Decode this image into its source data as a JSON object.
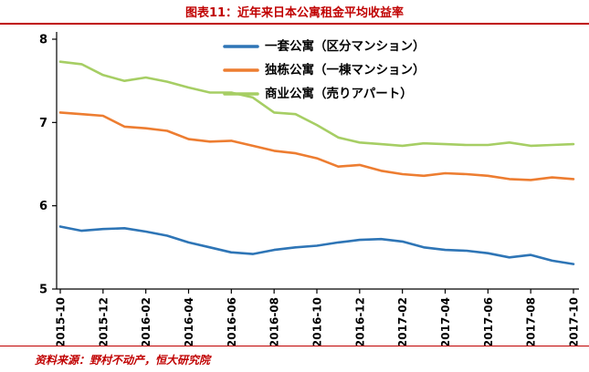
{
  "title": "图表11：近年来日本公寓租金平均收益率",
  "source": "资料来源：野村不动产，恒大研究院",
  "accent_color": "#C00000",
  "chart_data": {
    "type": "line",
    "title": "图表11：近年来日本公寓租金平均收益率",
    "categories": [
      "2015-10",
      "2015-11",
      "2015-12",
      "2016-01",
      "2016-02",
      "2016-03",
      "2016-04",
      "2016-05",
      "2016-06",
      "2016-07",
      "2016-08",
      "2016-09",
      "2016-10",
      "2016-11",
      "2016-12",
      "2017-01",
      "2017-02",
      "2017-03",
      "2017-04",
      "2017-05",
      "2017-06",
      "2017-07",
      "2017-08",
      "2017-09",
      "2017-10"
    ],
    "x_tick_every": 2,
    "ylim": [
      5,
      8
    ],
    "yticks": [
      5,
      6,
      7,
      8
    ],
    "grid": false,
    "legend_position": "top-left-inside",
    "series": [
      {
        "name": "一套公寓（区分マンション）",
        "color": "#2E75B6",
        "values": [
          5.75,
          5.7,
          5.72,
          5.73,
          5.69,
          5.64,
          5.56,
          5.5,
          5.44,
          5.42,
          5.47,
          5.5,
          5.52,
          5.56,
          5.59,
          5.6,
          5.57,
          5.5,
          5.47,
          5.46,
          5.43,
          5.38,
          5.41,
          5.34,
          5.3
        ]
      },
      {
        "name": "独栋公寓（一棟マンション）",
        "color": "#ED7D31",
        "values": [
          7.12,
          7.1,
          7.08,
          6.95,
          6.93,
          6.9,
          6.8,
          6.77,
          6.78,
          6.72,
          6.66,
          6.63,
          6.57,
          6.47,
          6.49,
          6.42,
          6.38,
          6.36,
          6.39,
          6.38,
          6.36,
          6.32,
          6.31,
          6.34,
          6.32
        ]
      },
      {
        "name": "商业公寓（売りアパート）",
        "color": "#A6CE64",
        "values": [
          7.73,
          7.7,
          7.57,
          7.5,
          7.54,
          7.49,
          7.42,
          7.36,
          7.36,
          7.3,
          7.12,
          7.1,
          6.97,
          6.82,
          6.76,
          6.74,
          6.72,
          6.75,
          6.74,
          6.73,
          6.73,
          6.76,
          6.72,
          6.73,
          6.74
        ]
      }
    ]
  }
}
